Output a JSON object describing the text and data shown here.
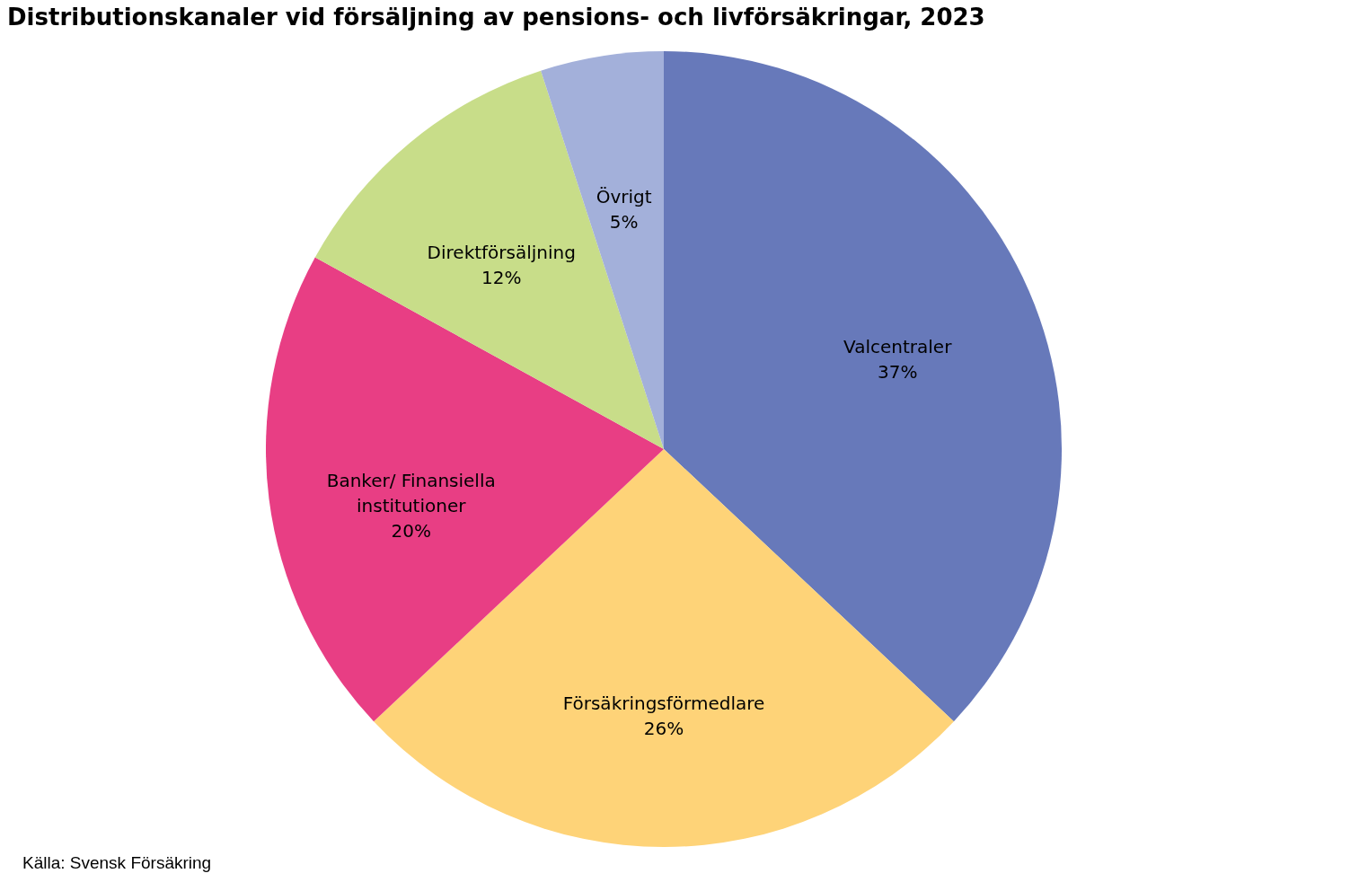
{
  "chart_data": {
    "type": "pie",
    "title": "Distributionskanaler vid försäljning av pensions- och livförsäkringar, 2023",
    "categories": [
      "Valcentraler",
      "Försäkringsförmedlare",
      "Banker/ Finansiella institutioner",
      "Direktförsäljning",
      "Övrigt"
    ],
    "values": [
      37,
      26,
      20,
      12,
      5
    ],
    "value_labels": [
      "37%",
      "26%",
      "20%",
      "12%",
      "5%"
    ],
    "colors": [
      "#6779ba",
      "#fed378",
      "#e83e84",
      "#c8dd89",
      "#a3b0da"
    ],
    "annotations": [
      "Källa: Svensk Försäkring"
    ]
  }
}
